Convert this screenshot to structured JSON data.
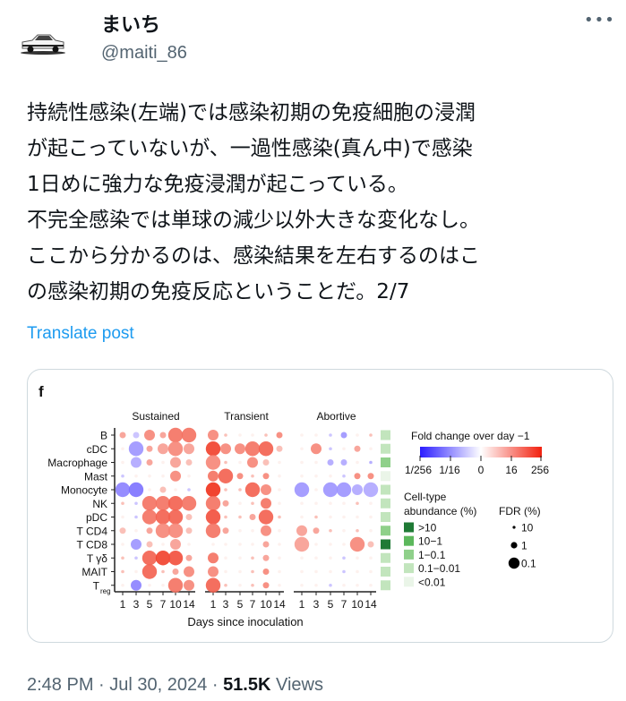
{
  "author": {
    "display_name": "まいち",
    "handle": "@maiti_86",
    "avatar_icon": "car-icon"
  },
  "more_icon": "more-horizontal-icon",
  "post_lines": [
    "持続性感染(左端)では感染初期の免疫細胞の浸潤",
    "が起こっていないが、一過性感染(真ん中)で感染",
    "1日めに強力な免疫浸潤が起こっている。",
    "不完全感染では単球の減少以外大きな変化なし。",
    "ここから分かるのは、感染結果を左右するのはこ",
    "の感染初期の免疫反応ということだ。2/7"
  ],
  "translate_label": "Translate post",
  "footer": {
    "time": "2:48 PM",
    "sep": "·",
    "date": "Jul 30, 2024",
    "views_count": "51.5K",
    "views_label": "Views"
  },
  "colors": {
    "link": "#1d9bf0",
    "muted": "#536471",
    "fc_low": "#3a2bff",
    "fc_high": "#f0301a",
    "abundance": [
      "#eaf5e8",
      "#c2e5bd",
      "#8fd08a",
      "#5cb85c",
      "#1f7a35"
    ]
  },
  "chart_data": {
    "type": "scatter",
    "panel_label": "f",
    "xlabel": "Days since inoculation",
    "x_ticks": [
      "1",
      "3",
      "5",
      "7",
      "10",
      "14"
    ],
    "rows": [
      "B",
      "cDC",
      "Macrophage",
      "Mast",
      "Monocyte",
      "NK",
      "pDC",
      "T CD4",
      "T CD8",
      "T γδ",
      "MAIT",
      "T"
    ],
    "row_sub": {
      "11": "reg"
    },
    "panels": [
      {
        "name": "Sustained",
        "log2_fold_change": [
          [
            2,
            -1,
            3,
            2,
            4,
            4
          ],
          [
            0,
            -3,
            2,
            2,
            3,
            2
          ],
          [
            0,
            -2,
            2,
            0,
            2,
            1
          ],
          [
            -1,
            0,
            0,
            0,
            3,
            0
          ],
          [
            -4,
            -5,
            0,
            1,
            0,
            -1
          ],
          [
            1,
            -1,
            4,
            4,
            5,
            4
          ],
          [
            0,
            -1,
            4,
            5,
            5,
            1
          ],
          [
            1,
            0,
            2,
            3,
            3,
            1
          ],
          [
            0,
            -3,
            1,
            0,
            2,
            0
          ],
          [
            1,
            -1,
            5,
            7,
            6,
            2
          ],
          [
            1,
            0,
            5,
            1,
            2,
            3
          ],
          [
            0,
            -4,
            0,
            0,
            4,
            3
          ]
        ],
        "fdr_size_level": [
          [
            1,
            1,
            2,
            1,
            3,
            3
          ],
          [
            0,
            3,
            1,
            2,
            3,
            2
          ],
          [
            0,
            2,
            1,
            0,
            2,
            1
          ],
          [
            0,
            0,
            0,
            0,
            2,
            0
          ],
          [
            3,
            3,
            0,
            1,
            0,
            0
          ],
          [
            0,
            0,
            3,
            3,
            3,
            3
          ],
          [
            0,
            0,
            3,
            3,
            3,
            1
          ],
          [
            1,
            0,
            1,
            3,
            3,
            1
          ],
          [
            0,
            2,
            1,
            0,
            2,
            0
          ],
          [
            0,
            0,
            3,
            3,
            3,
            1
          ],
          [
            0,
            0,
            3,
            0,
            1,
            2
          ],
          [
            0,
            2,
            0,
            0,
            3,
            2
          ]
        ]
      },
      {
        "name": "Transient",
        "log2_fold_change": [
          [
            3,
            1,
            0,
            0,
            1,
            3
          ],
          [
            7,
            3,
            3,
            4,
            5,
            1
          ],
          [
            3,
            1,
            0,
            3,
            1,
            0
          ],
          [
            4,
            5,
            3,
            1,
            3,
            0
          ],
          [
            8,
            1,
            1,
            5,
            3,
            0
          ],
          [
            4,
            2,
            0,
            1,
            4,
            0
          ],
          [
            6,
            1,
            1,
            2,
            5,
            1
          ],
          [
            4,
            2,
            0,
            0,
            3,
            0
          ],
          [
            0,
            0,
            0,
            0,
            2,
            0
          ],
          [
            4,
            0,
            0,
            1,
            2,
            0
          ],
          [
            3,
            0,
            0,
            1,
            3,
            0
          ],
          [
            5,
            1,
            0,
            1,
            3,
            0
          ]
        ],
        "fdr_size_level": [
          [
            2,
            0,
            0,
            0,
            0,
            1
          ],
          [
            3,
            2,
            2,
            3,
            3,
            1
          ],
          [
            3,
            0,
            0,
            2,
            1,
            0
          ],
          [
            2,
            3,
            1,
            0,
            1,
            0
          ],
          [
            3,
            0,
            0,
            3,
            2,
            0
          ],
          [
            3,
            1,
            0,
            0,
            2,
            0
          ],
          [
            3,
            0,
            0,
            1,
            3,
            0
          ],
          [
            3,
            1,
            0,
            0,
            2,
            0
          ],
          [
            0,
            0,
            0,
            0,
            1,
            0
          ],
          [
            2,
            0,
            0,
            0,
            1,
            0
          ],
          [
            2,
            0,
            0,
            0,
            1,
            0
          ],
          [
            3,
            0,
            0,
            0,
            1,
            0
          ]
        ]
      },
      {
        "name": "Abortive",
        "log2_fold_change": [
          [
            0,
            0,
            -1,
            -3,
            0,
            1
          ],
          [
            0,
            3,
            -1,
            0,
            2,
            0
          ],
          [
            0,
            0,
            -2,
            -2,
            0,
            -2
          ],
          [
            0,
            0,
            0,
            -1,
            3,
            3
          ],
          [
            -3,
            0,
            -3,
            -3,
            -2,
            -2
          ],
          [
            0,
            0,
            0,
            0,
            1,
            0
          ],
          [
            0,
            1,
            0,
            0,
            0,
            0
          ],
          [
            2,
            2,
            1,
            0,
            1,
            0
          ],
          [
            2,
            0,
            0,
            0,
            3,
            1
          ],
          [
            0,
            0,
            0,
            -1,
            0,
            0
          ],
          [
            0,
            0,
            0,
            -1,
            0,
            0
          ],
          [
            0,
            0,
            -1,
            0,
            0,
            0
          ]
        ],
        "fdr_size_level": [
          [
            0,
            0,
            0,
            1,
            0,
            0
          ],
          [
            0,
            2,
            0,
            0,
            1,
            0
          ],
          [
            0,
            0,
            1,
            1,
            0,
            0
          ],
          [
            0,
            0,
            0,
            0,
            1,
            1
          ],
          [
            3,
            0,
            3,
            3,
            2,
            3
          ],
          [
            0,
            0,
            0,
            0,
            0,
            0
          ],
          [
            0,
            0,
            0,
            0,
            0,
            0
          ],
          [
            2,
            1,
            0,
            0,
            0,
            0
          ],
          [
            3,
            0,
            0,
            0,
            3,
            1
          ],
          [
            0,
            0,
            0,
            0,
            0,
            0
          ],
          [
            0,
            0,
            0,
            0,
            0,
            0
          ],
          [
            0,
            0,
            0,
            0,
            0,
            0
          ]
        ]
      }
    ],
    "abundance_level": [
      1,
      1,
      2,
      0,
      1,
      1,
      1,
      2,
      4,
      1,
      1,
      1
    ],
    "legend": {
      "fold_title": "Fold change over day −1",
      "fold_ticks": [
        "1/256",
        "1/16",
        "0",
        "16",
        "256"
      ],
      "abundance_title_1": "Cell-type",
      "abundance_title_2": "abundance (%)",
      "abundance_labels": [
        ">10",
        "10−1",
        "1−0.1",
        "0.1−0.01",
        "<0.01"
      ],
      "fdr_title": "FDR (%)",
      "fdr_labels": [
        "10",
        "1",
        "0.1"
      ]
    }
  }
}
